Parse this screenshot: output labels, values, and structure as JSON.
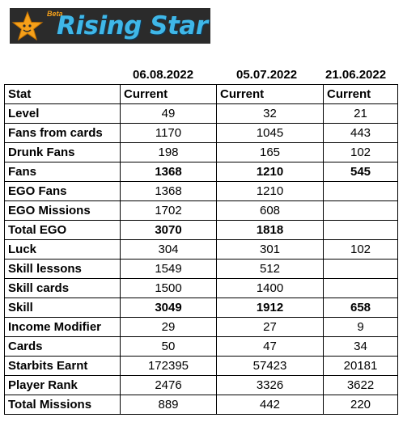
{
  "logo": {
    "beta": "Beta",
    "brand": "Rising Star",
    "colors": {
      "background": "#2b2b2b",
      "text": "#3fb7e8",
      "star": "#f5a01a"
    }
  },
  "dates": [
    "06.08.2022",
    "05.07.2022",
    "21.06.2022"
  ],
  "header": {
    "stat": "Stat",
    "current": [
      "Current",
      "Current",
      "Current"
    ]
  },
  "rows": [
    {
      "name": "Level",
      "values": [
        "49",
        "32",
        "21"
      ],
      "bold": false
    },
    {
      "name": "Fans from cards",
      "values": [
        "1170",
        "1045",
        "443"
      ],
      "bold": false
    },
    {
      "name": "Drunk Fans",
      "values": [
        "198",
        "165",
        "102"
      ],
      "bold": false
    },
    {
      "name": "Fans",
      "values": [
        "1368",
        "1210",
        "545"
      ],
      "bold": true
    },
    {
      "name": "EGO Fans",
      "values": [
        "1368",
        "1210",
        ""
      ],
      "bold": false
    },
    {
      "name": "EGO Missions",
      "values": [
        "1702",
        "608",
        ""
      ],
      "bold": false
    },
    {
      "name": "Total EGO",
      "values": [
        "3070",
        "1818",
        ""
      ],
      "bold": true
    },
    {
      "name": "Luck",
      "values": [
        "304",
        "301",
        "102"
      ],
      "bold": false
    },
    {
      "name": "Skill lessons",
      "values": [
        "1549",
        "512",
        ""
      ],
      "bold": false
    },
    {
      "name": "Skill cards",
      "values": [
        "1500",
        "1400",
        ""
      ],
      "bold": false
    },
    {
      "name": "Skill",
      "values": [
        "3049",
        "1912",
        "658"
      ],
      "bold": true
    },
    {
      "name": "Income Modifier",
      "values": [
        "29",
        "27",
        "9"
      ],
      "bold": false
    },
    {
      "name": "Cards",
      "values": [
        "50",
        "47",
        "34"
      ],
      "bold": false
    },
    {
      "name": "Starbits Earnt",
      "values": [
        "172395",
        "57423",
        "20181"
      ],
      "bold": false
    },
    {
      "name": "Player Rank",
      "values": [
        "2476",
        "3326",
        "3622"
      ],
      "bold": false
    },
    {
      "name": "Total Missions",
      "values": [
        "889",
        "442",
        "220"
      ],
      "bold": false
    }
  ]
}
